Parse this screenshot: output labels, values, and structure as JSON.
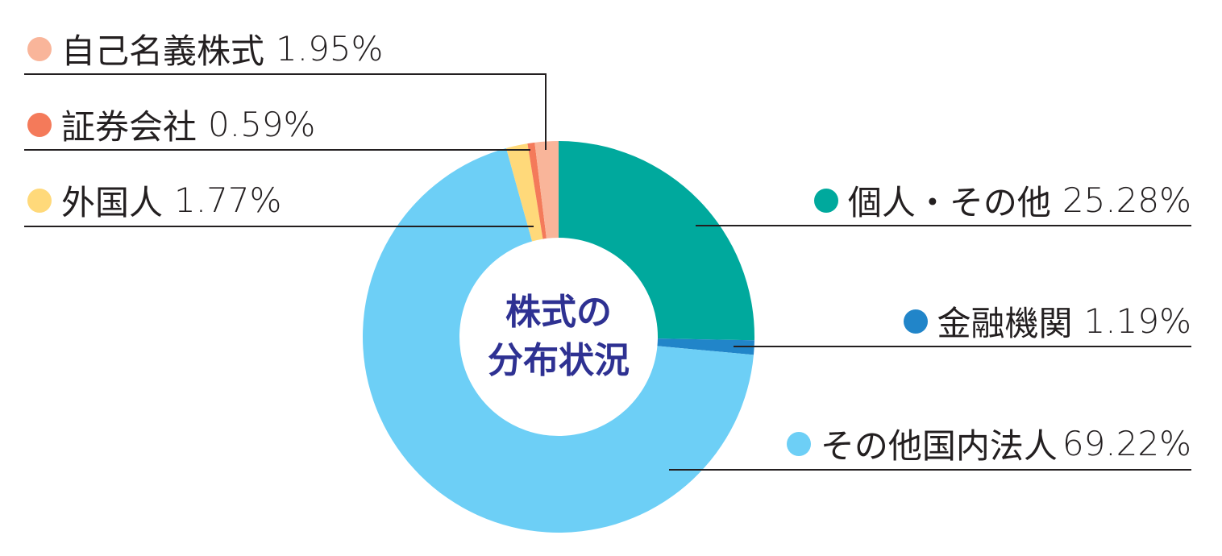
{
  "chart_data": {
    "type": "pie",
    "variant": "donut",
    "title": "株式の分布状況",
    "start_angle_deg": 0,
    "direction": "clockwise",
    "slices": [
      {
        "label": "個人・その他",
        "value": 25.28,
        "display": "個人・その他 25.28%",
        "color": "#00a99d"
      },
      {
        "label": "金融機関",
        "value": 1.19,
        "display": "金融機関 1.19%",
        "color": "#2185c9"
      },
      {
        "label": "その他国内法人",
        "value": 69.22,
        "display": "その他国内法人 69.22%",
        "color": "#6dcff6"
      },
      {
        "label": "外国人",
        "value": 1.77,
        "display": "外国人 1.77%",
        "color": "#ffd97a"
      },
      {
        "label": "証券会社",
        "value": 0.59,
        "display": "証券会社 0.59%",
        "color": "#f47a5a"
      },
      {
        "label": "自己名義株式",
        "value": 1.95,
        "display": "自己名義株式 1.95%",
        "color": "#f9b59a"
      }
    ],
    "unit": "%",
    "legend_position": "callouts"
  },
  "center": {
    "line1": "株式の",
    "line2": "分布状況",
    "color": "#2e3192"
  },
  "labels": {
    "jiko": {
      "name": "自己名義株式",
      "pct": "1.95%"
    },
    "shoken": {
      "name": "証券会社",
      "pct": "0.59%"
    },
    "gaikoku": {
      "name": "外国人",
      "pct": "1.77%"
    },
    "kojin": {
      "name": "個人・その他",
      "pct": "25.28%"
    },
    "kinyu": {
      "name": "金融機関",
      "pct": "1.19%"
    },
    "kokunai": {
      "name": "その他国内法人",
      "pct": "69.22%"
    }
  }
}
